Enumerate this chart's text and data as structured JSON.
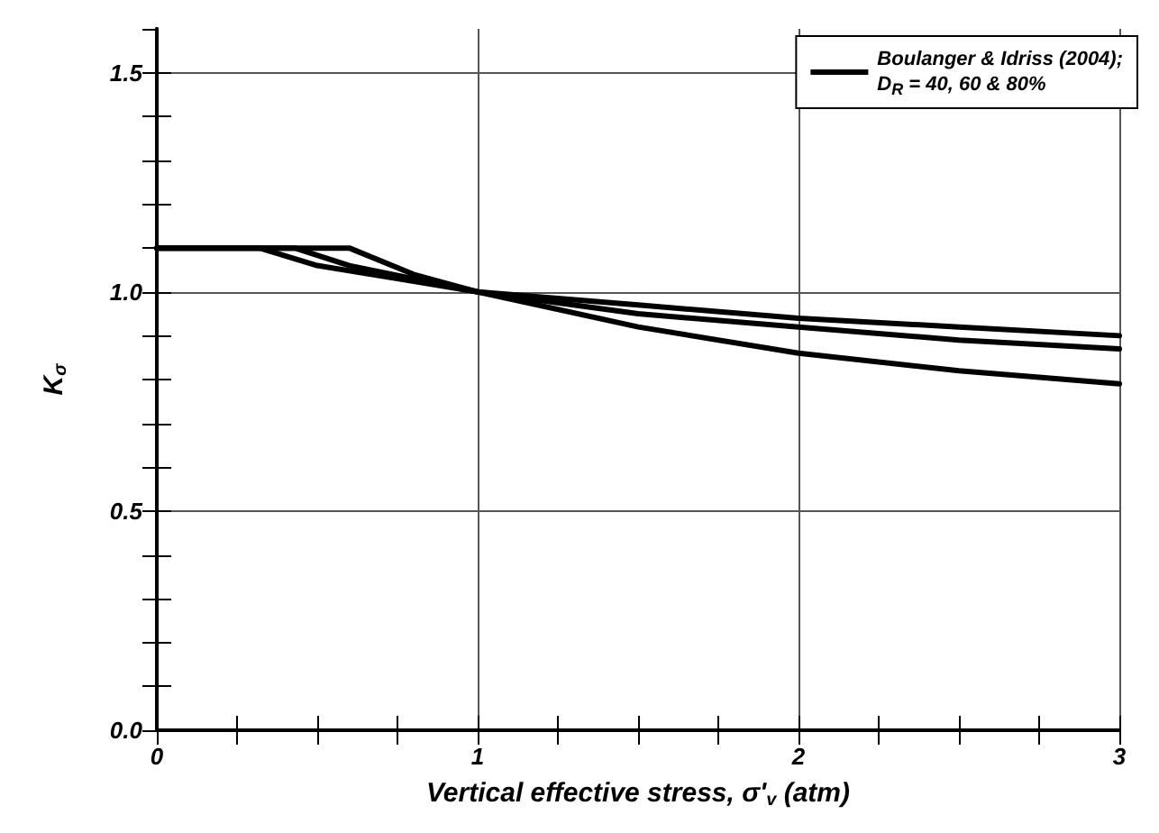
{
  "chart_data": {
    "type": "line",
    "xlabel": "Vertical effective stress, σ'$_{v}$ (atm)",
    "ylabel": "K$_{σ}$",
    "xlim": [
      0,
      3
    ],
    "xticks": [
      0,
      1,
      2,
      3
    ],
    "ylim": [
      0,
      1.6
    ],
    "yticks": [
      {
        "value": 0,
        "label": "0.0"
      },
      {
        "value": 0.5,
        "label": "0.5"
      },
      {
        "value": 1,
        "label": "1.0"
      },
      {
        "value": 1.5,
        "label": "1.5"
      }
    ],
    "grid": true,
    "legend": "top right",
    "marker": "none",
    "line_style": "solid",
    "series": [
      {
        "name": "Boulanger & Idriss (2004);\nD$_{R}$ = 40, 60 & 80%",
        "color": "#000000",
        "x": [
          0,
          0.32,
          0.5,
          0.75,
          1,
          1.5,
          2,
          2.5,
          3
        ],
        "values": [
          1.1,
          1.1,
          1.06,
          1.03,
          1,
          0.97,
          0.94,
          0.92,
          0.9
        ]
      },
      {
        "color": "#000000",
        "x": [
          0,
          0.43,
          0.6,
          0.8,
          1,
          1.5,
          2,
          2.5,
          3
        ],
        "values": [
          1.1,
          1.1,
          1.06,
          1.03,
          1,
          0.95,
          0.92,
          0.89,
          0.87
        ]
      },
      {
        "color": "#000000",
        "x": [
          0,
          0.6,
          0.8,
          1,
          1.5,
          2,
          2.5,
          3
        ],
        "values": [
          1.1,
          1.1,
          1.04,
          1,
          0.92,
          0.86,
          0.82,
          0.79
        ]
      }
    ]
  }
}
